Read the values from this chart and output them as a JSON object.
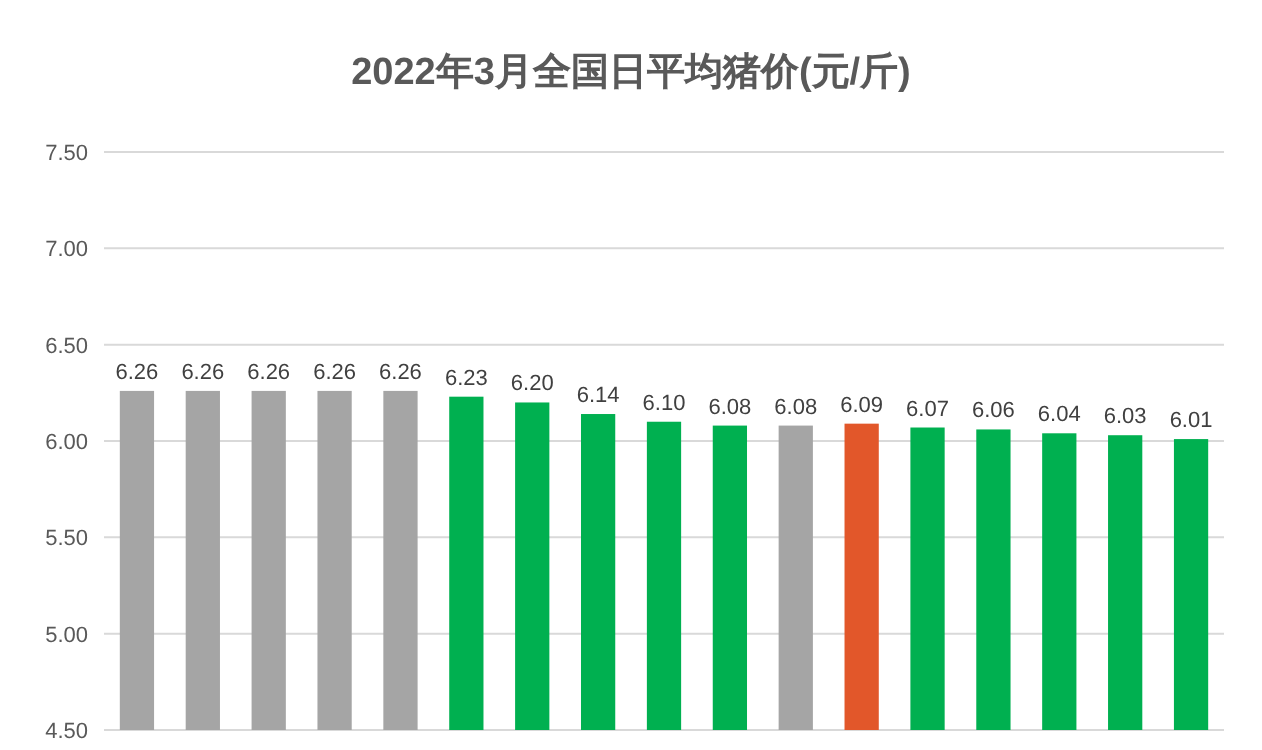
{
  "chart_data": {
    "type": "bar",
    "title": "2022年3月全国日平均猪价(元/斤)",
    "categories": [
      null,
      null,
      null,
      null,
      null,
      null,
      null,
      null,
      null,
      null,
      null,
      null,
      null,
      null,
      null,
      null,
      null
    ],
    "values": [
      6.26,
      6.26,
      6.26,
      6.26,
      6.26,
      6.23,
      6.2,
      6.14,
      6.1,
      6.08,
      6.08,
      6.09,
      6.07,
      6.06,
      6.04,
      6.03,
      6.01
    ],
    "value_labels": [
      "6.26",
      "6.26",
      "6.26",
      "6.26",
      "6.26",
      "6.23",
      "6.20",
      "6.14",
      "6.10",
      "6.08",
      "6.08",
      "6.09",
      "6.07",
      "6.06",
      "6.04",
      "6.03",
      "6.01"
    ],
    "colors": [
      "#a5a5a5",
      "#a5a5a5",
      "#a5a5a5",
      "#a5a5a5",
      "#a5a5a5",
      "#00b050",
      "#00b050",
      "#00b050",
      "#00b050",
      "#00b050",
      "#a5a5a5",
      "#e2572a",
      "#00b050",
      "#00b050",
      "#00b050",
      "#00b050",
      "#00b050"
    ],
    "ylim": [
      4.5,
      7.5
    ],
    "yticks": [
      {
        "value": 4.5,
        "label": "4.50"
      },
      {
        "value": 5,
        "label": "5.00"
      },
      {
        "value": 5.5,
        "label": "5.50"
      },
      {
        "value": 6,
        "label": "6.00"
      },
      {
        "value": 6.5,
        "label": "6.50"
      },
      {
        "value": 7,
        "label": "7.00"
      },
      {
        "value": 7.5,
        "label": "7.50"
      }
    ],
    "grid": "y"
  }
}
